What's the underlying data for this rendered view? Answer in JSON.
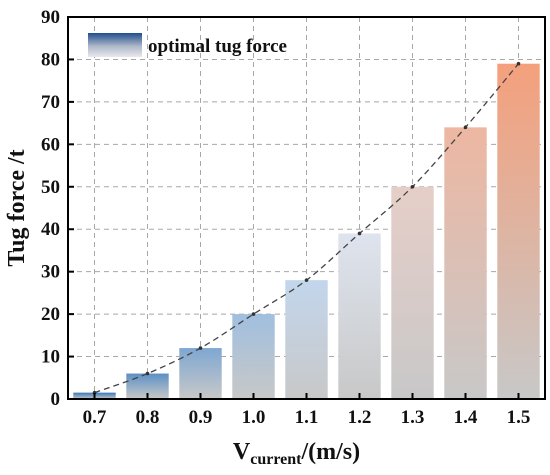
{
  "chart_data": {
    "type": "bar",
    "categories": [
      "0.7",
      "0.8",
      "0.9",
      "1.0",
      "1.1",
      "1.2",
      "1.3",
      "1.4",
      "1.5"
    ],
    "series": [
      {
        "name": "optimal tug force",
        "values": [
          1.5,
          6,
          12,
          20,
          28,
          39,
          50,
          64,
          79
        ]
      }
    ],
    "trend_line": {
      "style": "dashed",
      "color": "#444444"
    },
    "ylabel": "Tug force /t",
    "xlabel_main": "V",
    "xlabel_sub": "current",
    "xlabel_suffix": "/(m/s)",
    "ylim": [
      0,
      90
    ],
    "yticks": [
      "0",
      "10",
      "20",
      "30",
      "40",
      "50",
      "60",
      "70",
      "80",
      "90"
    ],
    "grid": true,
    "legend_position": "top-left",
    "colors": {
      "low": "#3a78b8",
      "mid": "#dde9f6",
      "high": "#f4a07c",
      "bar_base": "#c8c8c8",
      "legend_top": "#1f4e8f",
      "grid": "#a8a8a8"
    }
  }
}
